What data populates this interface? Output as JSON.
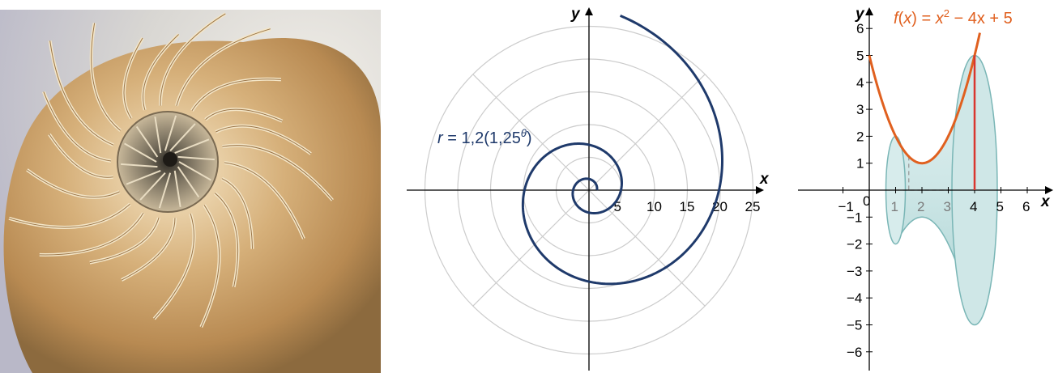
{
  "colors": {
    "spiral": "#1f3a6b",
    "function_curve": "#e0601f",
    "radius_line": "#d9362f",
    "solid_fill": "#cfe7e7",
    "solid_stroke": "#7ab6b6",
    "grid": "#cccccc",
    "axis": "#000000"
  },
  "photo": {
    "icon": "nautilus-shell-photo"
  },
  "polar_chart": {
    "equation": "r = 1,2(1,25^θ)",
    "equation_prefix": "r = 1,2(1,25",
    "equation_exponent": "θ",
    "equation_suffix": ")",
    "xlabel": "x",
    "ylabel": "y"
  },
  "solid_chart": {
    "function_label_prefix": "f(x) = x",
    "function_label_exponent": "2",
    "function_label_suffix": " − 4x + 5",
    "xlabel": "x",
    "ylabel": "y"
  },
  "chart_data": [
    {
      "type": "line",
      "coordinate_system": "polar",
      "equation": "r = 1,2(1,25^θ)",
      "r_ticks": [
        5,
        10,
        15,
        20,
        25
      ],
      "radial_grid_circles": [
        5,
        10,
        15,
        20,
        25
      ],
      "angular_grid_degrees": [
        0,
        45,
        90,
        135,
        180,
        225,
        270,
        315
      ],
      "theta_range_radians": [
        0,
        13.96
      ],
      "series": [
        {
          "name": "r = 1,2(1,25^θ)",
          "function": "r = 1.2*1.25^theta"
        }
      ],
      "xlabel": "x",
      "ylabel": "y",
      "grid": true
    },
    {
      "type": "line",
      "equation": "f(x) = x^2 − 4x + 5",
      "x_ticks": [
        -1,
        0,
        1,
        2,
        3,
        4,
        5,
        6
      ],
      "y_ticks": [
        -6,
        -5,
        -4,
        -3,
        -2,
        -1,
        1,
        2,
        3,
        4,
        5,
        6
      ],
      "xlim": [
        -1.5,
        6.5
      ],
      "ylim": [
        -6.8,
        6.5
      ],
      "solid_of_revolution": {
        "axis": "x",
        "x_from": 1,
        "x_to": 4,
        "radius_at_x4": 5
      },
      "series": [
        {
          "name": "f(x) = x2 − 4x + 5",
          "x_range": [
            0,
            4.2
          ]
        }
      ],
      "xlabel": "x",
      "ylabel": "y",
      "grid": false
    }
  ]
}
